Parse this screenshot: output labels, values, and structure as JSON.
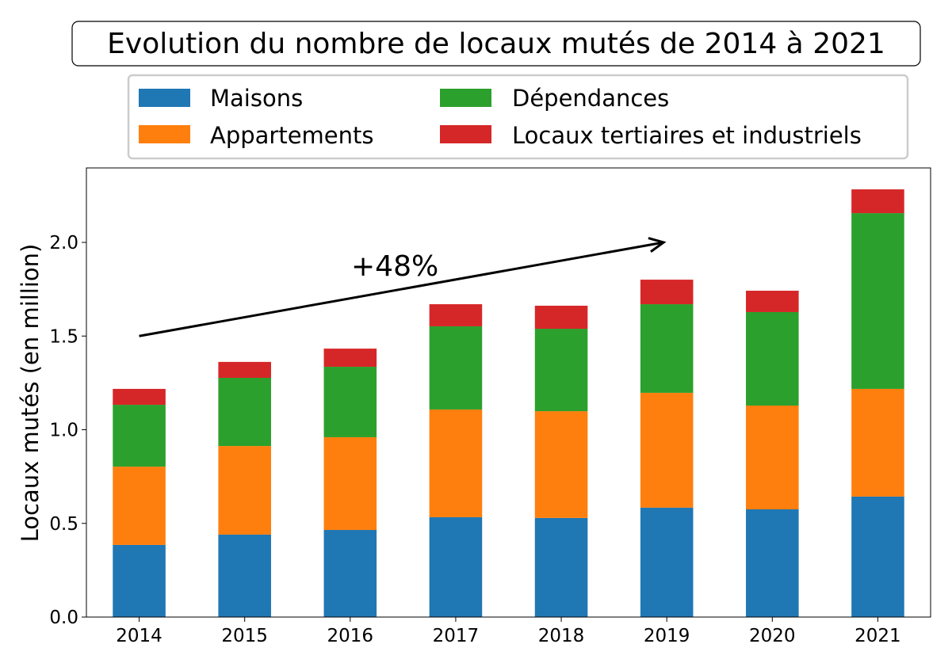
{
  "chart_data": {
    "type": "bar",
    "stacked": true,
    "title": "Evolution du nombre de locaux mutés de 2014 à 2021",
    "xlabel": "",
    "ylabel": "Locaux mutés (en million)",
    "ylim": [
      0,
      2.4
    ],
    "yticks": [
      "0.0",
      "0.5",
      "1.0",
      "1.5",
      "2.0"
    ],
    "categories": [
      "2014",
      "2015",
      "2016",
      "2017",
      "2018",
      "2019",
      "2020",
      "2021"
    ],
    "grid": false,
    "legend_position": "top",
    "series": [
      {
        "name": "Maisons",
        "color": "#1f77b4",
        "values": [
          0.385,
          0.44,
          0.465,
          0.533,
          0.529,
          0.584,
          0.575,
          0.643
        ]
      },
      {
        "name": "Appartements",
        "color": "#ff7f0e",
        "values": [
          0.418,
          0.473,
          0.495,
          0.575,
          0.57,
          0.613,
          0.554,
          0.575
        ]
      },
      {
        "name": "Dépendances",
        "color": "#2ca02c",
        "values": [
          0.33,
          0.364,
          0.376,
          0.444,
          0.44,
          0.473,
          0.499,
          0.938
        ]
      },
      {
        "name": "Locaux tertiaires et industriels",
        "color": "#d62728",
        "values": [
          0.085,
          0.085,
          0.097,
          0.118,
          0.123,
          0.131,
          0.114,
          0.127
        ]
      }
    ],
    "annotation": {
      "text": "+48%",
      "arrow_from": [
        "2014",
        1.5
      ],
      "arrow_to": [
        "2019",
        2.0
      ]
    }
  }
}
